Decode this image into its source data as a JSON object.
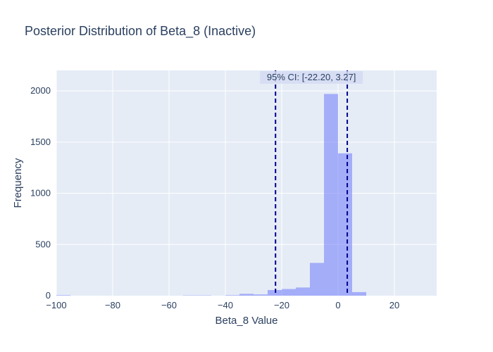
{
  "chart_data": {
    "type": "bar",
    "title": "Posterior Distribution of Beta_8 (Inactive)",
    "xlabel": "Beta_8 Value",
    "ylabel": "Frequency",
    "xlim": [
      -100,
      35
    ],
    "ylim": [
      0,
      2200
    ],
    "x_ticks": [
      -100,
      -80,
      -60,
      -40,
      -20,
      0,
      20
    ],
    "x_tick_labels": [
      "−100",
      "−80",
      "−60",
      "−40",
      "−20",
      "0",
      "20"
    ],
    "y_ticks": [
      0,
      500,
      1000,
      1500,
      2000
    ],
    "y_tick_labels": [
      "0",
      "500",
      "1000",
      "1500",
      "2000"
    ],
    "bin_width": 5,
    "bins": [
      {
        "start": -100,
        "end": -95,
        "count": 5
      },
      {
        "start": -55,
        "end": -50,
        "count": 3
      },
      {
        "start": -50,
        "end": -45,
        "count": 3
      },
      {
        "start": -40,
        "end": -35,
        "count": 5
      },
      {
        "start": -35,
        "end": -30,
        "count": 18
      },
      {
        "start": -30,
        "end": -25,
        "count": 12
      },
      {
        "start": -25,
        "end": -20,
        "count": 55
      },
      {
        "start": -20,
        "end": -15,
        "count": 65
      },
      {
        "start": -15,
        "end": -10,
        "count": 80
      },
      {
        "start": -10,
        "end": -5,
        "count": 320
      },
      {
        "start": -5,
        "end": 0,
        "count": 1970
      },
      {
        "start": 0,
        "end": 5,
        "count": 1390
      },
      {
        "start": 5,
        "end": 10,
        "count": 35
      }
    ],
    "ci_lines": [
      -22.2,
      3.27
    ],
    "ci_label": "95% CI: [-22.20, 3.27]",
    "grid": true,
    "colors": {
      "bar": "#636efa",
      "ci_line": "#00008b",
      "plot_bg": "#e5ecf6",
      "annotation_bg": "#d5dcf3",
      "text": "#2a3f5f"
    }
  }
}
